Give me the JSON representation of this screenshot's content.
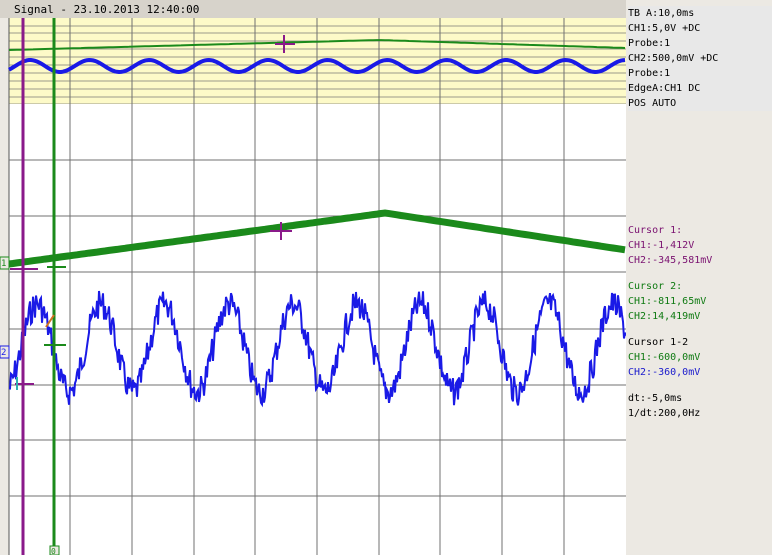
{
  "window": {
    "title": "Signal - 23.10.2013 12:40:00"
  },
  "settings": {
    "timebase": "TB A:10,0ms",
    "ch1_setting": "CH1:5,0V +DC",
    "ch1_probe": "Probe:1",
    "ch2_setting": "CH2:500,0mV +DC",
    "ch2_probe": "Probe:1",
    "trigger_edge": "EdgeA:CH1 DC",
    "trigger_pos": "POS AUTO"
  },
  "cursor1": {
    "title": "Cursor 1:",
    "ch1": "CH1:-1,412V",
    "ch2": "CH2:-345,581mV"
  },
  "cursor2": {
    "title": "Cursor 2:",
    "ch1": "CH1:-811,65mV",
    "ch2": "CH2:14,419mV"
  },
  "cursor_diff": {
    "title": "Cursor 1-2",
    "ch1": "CH1:-600,0mV",
    "ch2": "CH2:-360,0mV"
  },
  "timing": {
    "dt": "dt:-5,0ms",
    "inv_dt": "1/dt:200,0Hz"
  },
  "markers": {
    "ch1_marker": "1",
    "ch2_marker": "2",
    "cursor2_bottom": "0"
  },
  "colors": {
    "ch1": "#1b8a1b",
    "ch2": "#1a1ae6",
    "cursor1": "#8a1a8a",
    "cursor2": "#1b8a1b",
    "overview_bg": "#fdfac8",
    "grid": "#707070"
  }
}
